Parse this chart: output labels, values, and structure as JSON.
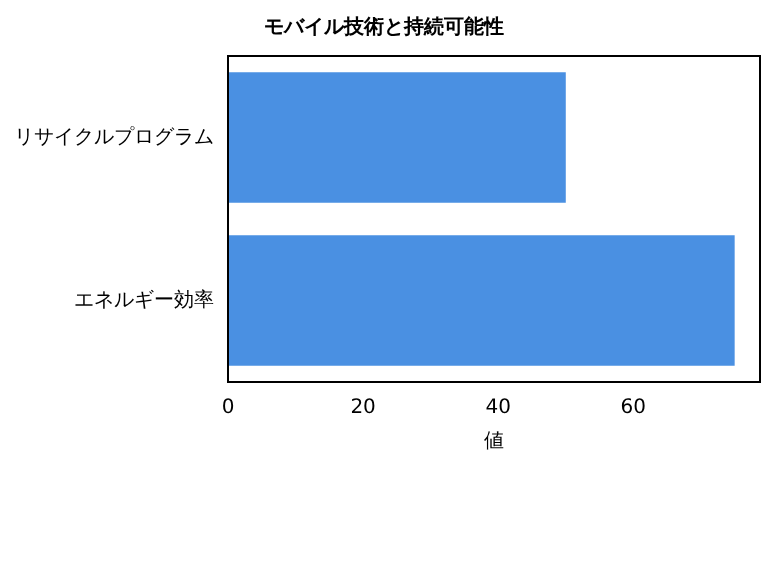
{
  "chart_data": {
    "type": "bar",
    "orientation": "horizontal",
    "title": "モバイル技術と持続可能性",
    "xlabel": "値",
    "categories": [
      "リサイクルプログラム",
      "エネルギー効率"
    ],
    "values": [
      50,
      75
    ],
    "color": "#4a90e2",
    "xlim": [
      0,
      78.75
    ],
    "xticks": [
      0,
      20,
      40,
      60
    ],
    "grid": false,
    "legend": false
  }
}
